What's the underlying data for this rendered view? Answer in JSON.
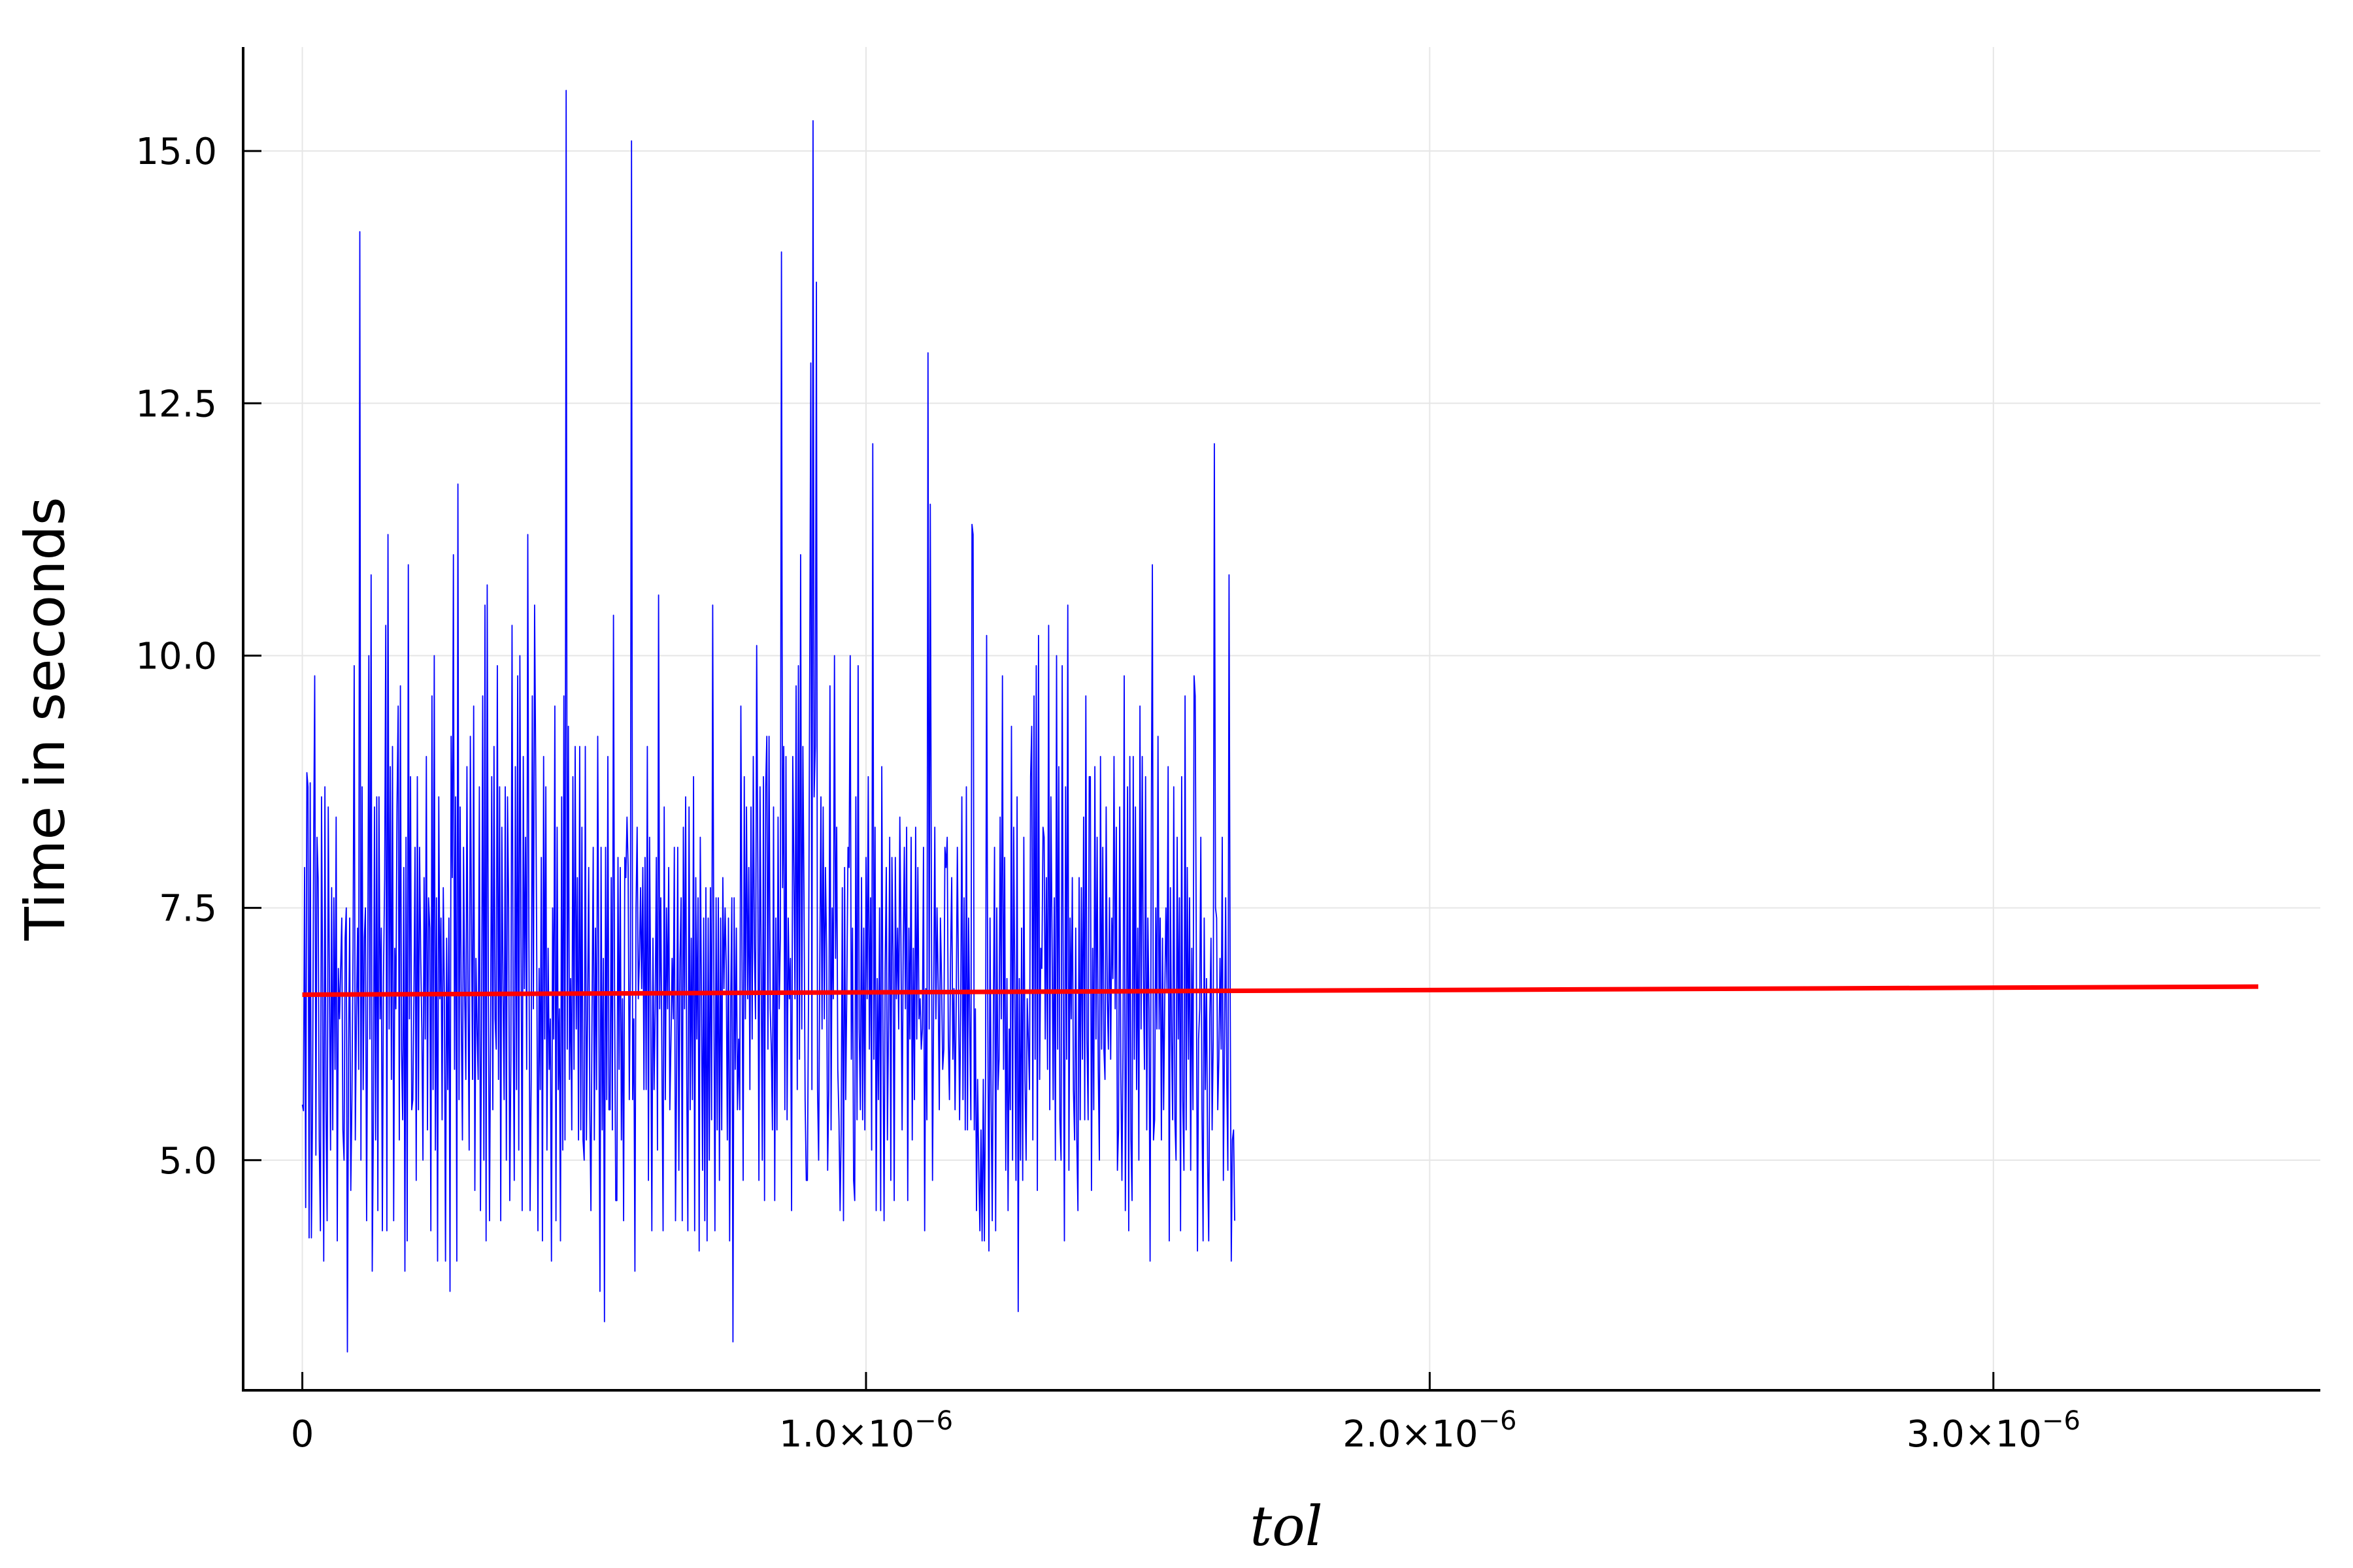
{
  "chart_data": {
    "type": "line",
    "title": "",
    "xlabel": "tol",
    "ylabel": "Time in seconds",
    "xlim": [
      -1.05e-07,
      3.58e-06
    ],
    "ylim": [
      2.72,
      16.03
    ],
    "grid": true,
    "legend": "none",
    "x_ticks": [
      {
        "value": 0,
        "mantissa": "0",
        "exponent": ""
      },
      {
        "value": 1e-06,
        "mantissa": "1.0×10",
        "exponent": "−6"
      },
      {
        "value": 2e-06,
        "mantissa": "2.0×10",
        "exponent": "−6"
      },
      {
        "value": 3e-06,
        "mantissa": "3.0×10",
        "exponent": "−6"
      }
    ],
    "y_ticks": [
      {
        "value": 5.0,
        "label": "5.0"
      },
      {
        "value": 7.5,
        "label": "7.5"
      },
      {
        "value": 10.0,
        "label": "10.0"
      },
      {
        "value": 12.5,
        "label": "12.5"
      },
      {
        "value": 15.0,
        "label": "15.0"
      }
    ],
    "series": [
      {
        "color": "#0000ff",
        "x_start": 0,
        "x_step": 2e-09,
        "values": [
          5.55,
          5.49,
          7.9,
          4.53,
          8.84,
          8.7,
          4.23,
          8.74,
          4.23,
          5.46,
          8.0,
          9.8,
          5.05,
          8.2,
          7.8,
          5.2,
          4.3,
          8.6,
          6.7,
          4.0,
          8.7,
          5.5,
          4.4,
          8.5,
          6.9,
          5.1,
          7.7,
          5.3,
          7.6,
          5.9,
          8.4,
          4.2,
          6.9,
          6.4,
          6.9,
          7.4,
          5.3,
          5.0,
          7.2,
          7.5,
          3.1,
          6.1,
          7.4,
          4.7,
          5.6,
          7.1,
          9.9,
          5.2,
          6.4,
          7.3,
          5.9,
          14.2,
          5.0,
          8.7,
          5.7,
          7.2,
          7.5,
          4.4,
          6.8,
          10.0,
          6.2,
          10.8,
          3.9,
          5.3,
          8.5,
          5.2,
          8.6,
          4.5,
          8.6,
          6.4,
          7.3,
          4.3,
          6.8,
          7.8,
          10.3,
          4.3,
          11.2,
          6.3,
          8.9,
          5.8,
          9.1,
          4.4,
          7.1,
          6.5,
          8.5,
          9.5,
          5.2,
          9.7,
          6.1,
          5.4,
          7.9,
          3.9,
          8.2,
          4.2,
          10.9,
          6.4,
          8.8,
          5.5,
          5.6,
          6.6,
          8.1,
          4.8,
          8.8,
          5.5,
          8.1,
          7.0,
          6.3,
          5.0,
          7.8,
          6.2,
          9.0,
          5.3,
          7.6,
          7.3,
          4.3,
          9.6,
          5.7,
          10.0,
          5.1,
          7.6,
          4.0,
          8.6,
          6.6,
          7.4,
          5.4,
          7.7,
          6.6,
          4.0,
          7.2,
          5.7,
          7.4,
          3.7,
          9.2,
          7.8,
          11.0,
          5.9,
          8.6,
          4.0,
          11.7,
          5.6,
          8.5,
          6.4,
          5.2,
          8.1,
          6.7,
          5.8,
          8.9,
          6.6,
          5.1,
          9.2,
          7.4,
          5.8,
          9.5,
          4.7,
          7.0,
          6.3,
          5.8,
          8.7,
          4.5,
          6.3,
          9.6,
          5.0,
          10.5,
          4.2,
          10.7,
          6.6,
          4.4,
          6.3,
          8.8,
          5.5,
          9.1,
          6.4,
          6.1,
          9.9,
          5.8,
          8.7,
          4.4,
          8.3,
          6.7,
          5.6,
          8.7,
          5.0,
          8.6,
          7.5,
          4.6,
          6.0,
          10.3,
          6.5,
          4.8,
          8.9,
          5.7,
          9.8,
          5.1,
          10.0,
          7.2,
          4.5,
          9.0,
          6.7,
          8.2,
          5.9,
          11.2,
          7.2,
          4.5,
          5.8,
          9.6,
          6.5,
          10.5,
          8.9,
          6.9,
          4.3,
          6.9,
          5.7,
          8.0,
          4.2,
          9.0,
          6.2,
          8.7,
          5.1,
          7.1,
          5.9,
          6.4,
          4.0,
          7.5,
          6.2,
          9.5,
          4.4,
          8.3,
          5.7,
          6.5,
          4.2,
          8.6,
          5.1,
          9.6,
          5.2,
          15.6,
          6.1,
          9.3,
          5.8,
          6.8,
          5.3,
          8.8,
          5.9,
          9.1,
          6.3,
          7.8,
          5.2,
          9.1,
          5.3,
          8.3,
          5.2,
          5.0,
          9.1,
          5.2,
          6.4,
          7.9,
          5.5,
          4.5,
          6.5,
          8.1,
          5.2,
          7.3,
          5.7,
          9.2,
          6.6,
          3.7,
          8.1,
          5.3,
          7.0,
          3.4,
          8.1,
          5.6,
          9.0,
          5.5,
          5.5,
          7.8,
          5.3,
          10.4,
          6.6,
          4.6,
          4.6,
          8.0,
          5.9,
          7.9,
          5.2,
          6.6,
          4.4,
          8.0,
          7.8,
          8.4,
          7.9,
          5.6,
          6.9,
          15.1,
          5.6,
          6.4,
          3.9,
          7.5,
          8.3,
          6.6,
          7.0,
          7.7,
          6.7,
          7.9,
          5.7,
          8.0,
          5.7,
          9.1,
          4.8,
          8.2,
          6.7,
          4.3,
          7.2,
          5.7,
          6.5,
          8.0,
          5.1,
          10.6,
          6.5,
          7.6,
          5.9,
          4.3,
          8.5,
          5.6,
          7.5,
          6.5,
          7.9,
          5.5,
          6.2,
          7.0,
          6.4,
          8.1,
          4.4,
          5.9,
          8.1,
          4.9,
          7.0,
          7.6,
          4.4,
          8.3,
          6.5,
          8.6,
          5.8,
          4.3,
          8.5,
          5.5,
          7.2,
          5.6,
          8.8,
          4.3,
          7.8,
          6.2,
          7.6,
          4.1,
          8.2,
          6.7,
          4.9,
          7.4,
          4.4,
          7.7,
          4.2,
          7.4,
          5.0,
          7.7,
          5.4,
          10.5,
          6.9,
          4.3,
          7.6,
          5.3,
          7.6,
          4.8,
          7.4,
          5.3,
          7.8,
          6.7,
          7.5,
          6.9,
          5.2,
          7.4,
          4.2,
          6.6,
          7.6,
          3.2,
          7.6,
          5.9,
          7.3,
          5.5,
          6.2,
          5.5,
          9.5,
          7.1,
          4.8,
          8.8,
          6.4,
          8.5,
          6.6,
          7.9,
          5.7,
          8.5,
          6.2,
          9.0,
          7.1,
          6.4,
          10.1,
          7.9,
          4.8,
          8.7,
          6.9,
          5.0,
          8.8,
          4.6,
          8.7,
          9.2,
          6.1,
          9.2,
          6.5,
          6.1,
          5.3,
          8.5,
          4.6,
          7.4,
          5.3,
          8.4,
          6.5,
          7.2,
          14.0,
          7.7,
          9.1,
          5.5,
          9.0,
          5.4,
          7.4,
          6.6,
          7.0,
          4.5,
          9.0,
          7.9,
          6.6,
          9.7,
          5.7,
          9.9,
          6.0,
          11.0,
          6.3,
          9.1,
          7.6,
          5.6,
          4.8,
          4.8,
          6.6,
          9.6,
          12.9,
          5.7,
          15.3,
          8.6,
          9.1,
          13.7,
          5.7,
          5.0,
          7.0,
          8.6,
          6.3,
          8.5,
          6.4,
          7.9,
          7.1,
          4.9,
          5.7,
          9.7,
          5.3,
          7.5,
          6.6,
          10.0,
          7.0,
          8.3,
          5.9,
          5.4,
          4.5,
          5.3,
          7.7,
          4.4,
          7.9,
          5.6,
          6.7,
          8.1,
          7.9,
          10.0,
          6.0,
          7.3,
          4.8,
          4.6,
          8.6,
          5.4,
          9.9,
          6.3,
          5.5,
          7.8,
          5.4,
          7.3,
          5.3,
          8.0,
          6.6,
          8.8,
          6.1,
          7.6,
          5.1,
          12.1,
          6.0,
          8.3,
          4.5,
          6.8,
          5.6,
          7.5,
          4.5,
          8.9,
          6.4,
          4.4,
          6.9,
          7.9,
          5.2,
          6.4,
          8.2,
          4.8,
          8.0,
          7.0,
          4.6,
          8.0,
          6.6,
          7.3,
          6.3,
          8.4,
          7.2,
          5.3,
          7.1,
          8.1,
          6.5,
          8.3,
          4.6,
          7.3,
          6.2,
          8.2,
          5.2,
          7.1,
          5.6,
          8.3,
          6.2,
          7.9,
          6.4,
          6.6,
          6.1,
          6.3,
          8.1,
          4.3,
          6.7,
          5.4,
          13.0,
          6.3,
          11.5,
          7.6,
          4.8,
          6.6,
          8.3,
          6.4,
          7.5,
          6.7,
          5.5,
          7.4,
          6.8,
          5.9,
          6.1,
          8.1,
          7.9,
          8.2,
          6.2,
          5.6,
          7.0,
          7.8,
          6.0,
          6.7,
          5.5,
          6.6,
          8.1,
          6.8,
          5.4,
          6.5,
          8.6,
          5.6,
          7.6,
          5.3,
          8.7,
          5.3,
          7.4,
          6.3,
          5.4,
          11.3,
          11.2,
          5.3,
          6.5,
          4.5,
          5.8,
          4.9,
          4.3,
          5.3,
          4.2,
          5.8,
          4.2,
          5.7,
          10.2,
          6.4,
          4.1,
          7.4,
          5.6,
          4.4,
          6.5,
          8.1,
          4.3,
          7.5,
          5.7,
          6.0,
          8.4,
          6.4,
          9.8,
          5.9,
          8.0,
          4.9,
          6.8,
          4.5,
          6.3,
          5.5,
          9.3,
          5.0,
          8.3,
          6.7,
          4.8,
          8.6,
          3.5,
          6.8,
          5.0,
          7.3,
          4.8,
          8.2,
          5.8,
          5.0,
          6.6,
          6.2,
          5.7,
          8.8,
          9.3,
          5.2,
          9.6,
          6.0,
          9.9,
          4.7,
          10.2,
          5.8,
          7.1,
          6.9,
          8.3,
          8.2,
          6.2,
          7.8,
          5.9,
          10.3,
          5.5,
          8.6,
          7.2,
          5.6,
          7.6,
          5.0,
          10.0,
          6.1,
          8.9,
          5.4,
          5.0,
          9.9,
          6.6,
          4.2,
          8.7,
          6.0,
          10.5,
          4.9,
          7.4,
          6.4,
          7.8,
          5.7,
          5.2,
          7.3,
          5.2,
          4.5,
          7.8,
          5.4,
          7.7,
          6.0,
          8.4,
          5.4,
          9.6,
          6.2,
          5.4,
          8.8,
          8.8,
          4.7,
          7.1,
          5.5,
          8.9,
          6.2,
          8.2,
          5.9,
          5.0,
          9.0,
          6.1,
          8.1,
          6.1,
          5.8,
          8.5,
          6.6,
          6.1,
          7.6,
          6.0,
          7.4,
          6.8,
          9.0,
          6.5,
          8.3,
          4.9,
          5.3,
          8.5,
          5.9,
          4.8,
          6.1,
          9.8,
          4.5,
          6.1,
          8.7,
          4.3,
          9.0,
          5.2,
          4.6,
          9.0,
          6.0,
          8.5,
          5.7,
          7.3,
          5.0,
          9.5,
          6.3,
          9.0,
          6.8,
          5.9,
          8.8,
          5.3,
          7.4,
          6.5,
          4.0,
          8.2,
          10.9,
          5.2,
          5.4,
          7.5,
          6.3,
          9.2,
          6.3,
          7.4,
          5.2,
          7.2,
          5.5,
          6.6,
          7.5,
          6.7,
          8.9,
          4.2,
          7.7,
          6.2,
          5.4,
          8.7,
          5.4,
          5.0,
          8.2,
          6.2,
          7.6,
          4.3,
          8.8,
          5.6,
          4.9,
          9.6,
          5.3,
          7.9,
          6.0,
          7.6,
          4.9,
          7.1,
          5.5,
          9.8,
          9.6,
          7.1,
          4.1,
          6.2,
          6.5,
          8.2,
          5.5,
          4.2,
          7.4,
          5.7,
          6.8,
          5.0,
          4.2,
          6.4,
          7.2,
          5.3,
          6.2,
          12.1,
          7.5,
          7.4,
          5.5,
          6.0,
          7.0,
          6.1,
          8.2,
          4.8,
          6.2,
          7.6,
          5.8,
          4.9,
          10.8,
          6.7,
          4.0,
          5.2,
          5.3,
          4.4
        ]
      },
      {
        "color": "#ff0000",
        "x": [
          0,
          3.47e-06
        ],
        "values": [
          6.64,
          6.72
        ]
      }
    ]
  }
}
